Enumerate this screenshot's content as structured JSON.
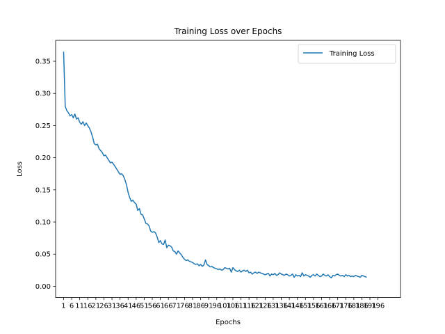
{
  "chart_data": {
    "type": "line",
    "title": "Training Loss over Epochs",
    "xlabel": "Epochs",
    "ylabel": "Loss",
    "xlim": [
      -3.95,
      209.95
    ],
    "ylim": [
      -0.0175,
      0.3825
    ],
    "grid": false,
    "legend_placement": "top-right",
    "x_tick_labels": [
      "1",
      "6",
      "11",
      "16",
      "21",
      "26",
      "31",
      "36",
      "41",
      "46",
      "51",
      "56",
      "61",
      "66",
      "71",
      "76",
      "81",
      "86",
      "91",
      "96",
      "101",
      "106",
      "111",
      "116",
      "121",
      "126",
      "131",
      "136",
      "141",
      "146",
      "151",
      "156",
      "161",
      "166",
      "171",
      "176",
      "181",
      "186",
      "191",
      "196"
    ],
    "y_tick_labels": [
      "0.00",
      "0.05",
      "0.10",
      "0.15",
      "0.20",
      "0.25",
      "0.30",
      "0.35"
    ],
    "series": [
      {
        "name": "Training Loss",
        "color": "#1f77b4",
        "x_start": 1,
        "x_step": 1,
        "values": [
          0.365,
          0.28,
          0.273,
          0.27,
          0.265,
          0.267,
          0.262,
          0.268,
          0.26,
          0.262,
          0.255,
          0.252,
          0.256,
          0.25,
          0.254,
          0.25,
          0.246,
          0.24,
          0.232,
          0.222,
          0.22,
          0.221,
          0.214,
          0.211,
          0.208,
          0.203,
          0.204,
          0.2,
          0.196,
          0.192,
          0.193,
          0.19,
          0.186,
          0.182,
          0.178,
          0.174,
          0.175,
          0.172,
          0.166,
          0.158,
          0.146,
          0.138,
          0.132,
          0.134,
          0.13,
          0.128,
          0.118,
          0.121,
          0.112,
          0.111,
          0.105,
          0.098,
          0.097,
          0.094,
          0.086,
          0.084,
          0.085,
          0.083,
          0.077,
          0.068,
          0.071,
          0.066,
          0.065,
          0.072,
          0.06,
          0.064,
          0.063,
          0.061,
          0.055,
          0.054,
          0.05,
          0.055,
          0.052,
          0.049,
          0.045,
          0.042,
          0.04,
          0.041,
          0.039,
          0.038,
          0.037,
          0.035,
          0.034,
          0.035,
          0.032,
          0.034,
          0.031,
          0.033,
          0.041,
          0.034,
          0.032,
          0.03,
          0.031,
          0.029,
          0.028,
          0.027,
          0.026,
          0.027,
          0.025,
          0.026,
          0.029,
          0.028,
          0.027,
          0.028,
          0.022,
          0.029,
          0.026,
          0.024,
          0.023,
          0.025,
          0.022,
          0.024,
          0.025,
          0.023,
          0.025,
          0.021,
          0.022,
          0.019,
          0.021,
          0.022,
          0.02,
          0.022,
          0.021,
          0.02,
          0.019,
          0.018,
          0.019,
          0.02,
          0.016,
          0.019,
          0.018,
          0.02,
          0.017,
          0.018,
          0.021,
          0.019,
          0.018,
          0.017,
          0.019,
          0.018,
          0.016,
          0.017,
          0.019,
          0.014,
          0.018,
          0.016,
          0.017,
          0.015,
          0.021,
          0.016,
          0.018,
          0.017,
          0.016,
          0.014,
          0.017,
          0.018,
          0.016,
          0.019,
          0.017,
          0.015,
          0.016,
          0.019,
          0.017,
          0.016,
          0.018,
          0.015,
          0.013,
          0.017,
          0.016,
          0.018,
          0.019,
          0.017,
          0.016,
          0.017,
          0.015,
          0.018,
          0.016,
          0.017,
          0.015,
          0.016,
          0.015,
          0.017,
          0.016,
          0.015,
          0.014,
          0.017,
          0.016,
          0.015,
          0.014
        ]
      }
    ]
  }
}
